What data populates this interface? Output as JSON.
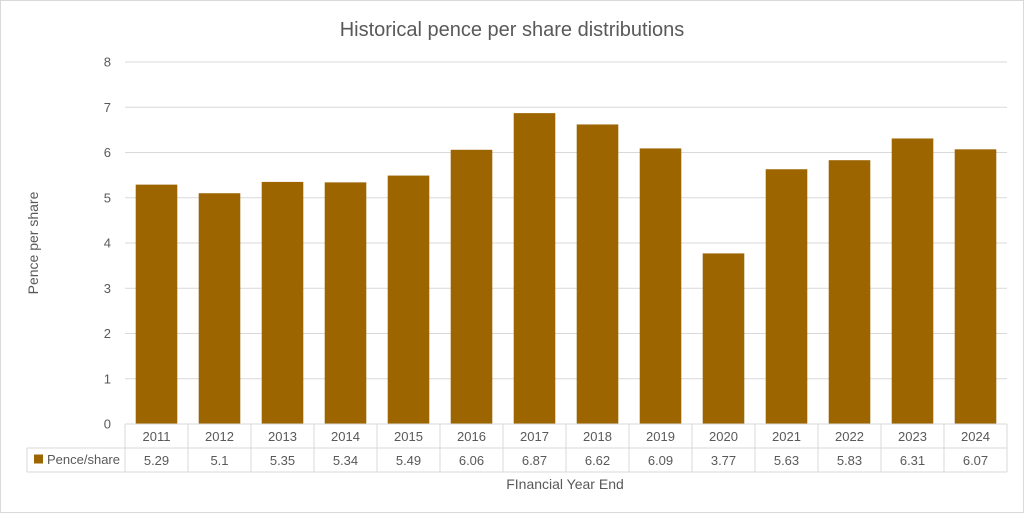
{
  "chart_data": {
    "type": "bar",
    "title": "Historical pence per share distributions",
    "xlabel": "FInancial Year End",
    "ylabel": "Pence per share",
    "ylim": [
      0,
      8
    ],
    "yticks": [
      0,
      1,
      2,
      3,
      4,
      5,
      6,
      7,
      8
    ],
    "grid": true,
    "legend": "data-table-row",
    "categories": [
      "2011",
      "2012",
      "2013",
      "2014",
      "2015",
      "2016",
      "2017",
      "2018",
      "2019",
      "2020",
      "2021",
      "2022",
      "2023",
      "2024"
    ],
    "series": [
      {
        "name": "Pence/share",
        "color": "#9C6500",
        "values": [
          5.29,
          5.1,
          5.35,
          5.34,
          5.49,
          6.06,
          6.87,
          6.62,
          6.09,
          3.77,
          5.63,
          5.83,
          6.31,
          6.07
        ],
        "value_labels": [
          "5.29",
          "5.1",
          "5.35",
          "5.34",
          "5.49",
          "6.06",
          "6.87",
          "6.62",
          "6.09",
          "3.77",
          "5.63",
          "5.83",
          "6.31",
          "6.07"
        ]
      }
    ]
  }
}
